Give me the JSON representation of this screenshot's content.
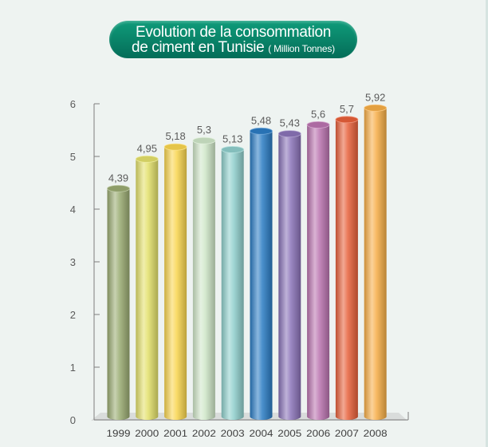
{
  "title": {
    "line1": "Evolution de la consommation",
    "line2": "de ciment en Tunisie",
    "unit": "( Million Tonnes)"
  },
  "chart_data": {
    "type": "bar",
    "title": "Evolution de la consommation de ciment en Tunisie ( Million Tonnes)",
    "categories": [
      "1999",
      "2000",
      "2001",
      "2002",
      "2003",
      "2004",
      "2005",
      "2006",
      "2007",
      "2008"
    ],
    "values": [
      4.39,
      4.95,
      5.18,
      5.3,
      5.13,
      5.48,
      5.43,
      5.6,
      5.7,
      5.92
    ],
    "value_labels": [
      "4,39",
      "4,95",
      "5,18",
      "5,3",
      "5,13",
      "5,48",
      "5,43",
      "5,6",
      "5,7",
      "5,92"
    ],
    "ylim": [
      0,
      6
    ],
    "yticks": [
      "0",
      "1",
      "2",
      "3",
      "4",
      "5",
      "6"
    ],
    "xlabel": "",
    "ylabel": "",
    "grid": false,
    "legend": "none",
    "colors": {
      "title_bg": "#0a8a6c",
      "bars": [
        "#9aab72",
        "#e3e06a",
        "#f9d64f",
        "#cfe6c8",
        "#8fcfcc",
        "#2b7cc4",
        "#8a73b8",
        "#bb74b0",
        "#e8603a",
        "#f7ae47"
      ],
      "floor": "#d9dcdb",
      "axis": "#7d7d7d",
      "text": "#5b5b5b"
    }
  }
}
